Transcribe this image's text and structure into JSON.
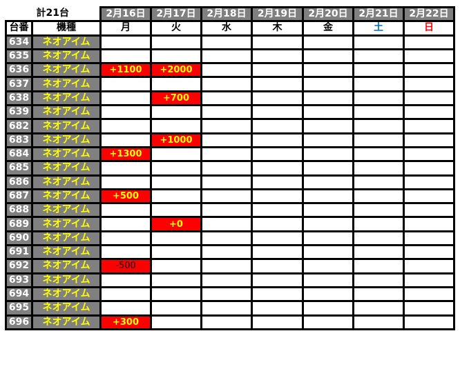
{
  "header": {
    "total_label": "計21台",
    "col_number": "台番",
    "col_model": "機種",
    "dates": [
      "2月16日",
      "2月17日",
      "2月18日",
      "2月19日",
      "2月20日",
      "2月21日",
      "2月22日"
    ],
    "weekdays": [
      "月",
      "火",
      "水",
      "木",
      "金",
      "土",
      "日"
    ]
  },
  "colors": {
    "header_bg": "#808080",
    "model_text": "#ffff00",
    "highlight_bg": "#ff0000",
    "saturday": "#0070c0",
    "sunday": "#ff0000"
  },
  "rows": [
    {
      "number": "634",
      "model": "ネオアイム",
      "values": [
        "",
        "",
        "",
        "",
        "",
        "",
        ""
      ]
    },
    {
      "number": "635",
      "model": "ネオアイム",
      "values": [
        "",
        "",
        "",
        "",
        "",
        "",
        ""
      ]
    },
    {
      "number": "636",
      "model": "ネオアイム",
      "values": [
        "+1100",
        "+2000",
        "",
        "",
        "",
        "",
        ""
      ]
    },
    {
      "number": "637",
      "model": "ネオアイム",
      "values": [
        "",
        "",
        "",
        "",
        "",
        "",
        ""
      ]
    },
    {
      "number": "638",
      "model": "ネオアイム",
      "values": [
        "",
        "+700",
        "",
        "",
        "",
        "",
        ""
      ]
    },
    {
      "number": "639",
      "model": "ネオアイム",
      "values": [
        "",
        "",
        "",
        "",
        "",
        "",
        ""
      ]
    },
    {
      "number": "682",
      "model": "ネオアイム",
      "values": [
        "",
        "",
        "",
        "",
        "",
        "",
        ""
      ]
    },
    {
      "number": "683",
      "model": "ネオアイム",
      "values": [
        "",
        "+1000",
        "",
        "",
        "",
        "",
        ""
      ]
    },
    {
      "number": "684",
      "model": "ネオアイム",
      "values": [
        "+1300",
        "",
        "",
        "",
        "",
        "",
        ""
      ]
    },
    {
      "number": "685",
      "model": "ネオアイム",
      "values": [
        "",
        "",
        "",
        "",
        "",
        "",
        ""
      ]
    },
    {
      "number": "686",
      "model": "ネオアイム",
      "values": [
        "",
        "",
        "",
        "",
        "",
        "",
        ""
      ]
    },
    {
      "number": "687",
      "model": "ネオアイム",
      "values": [
        "+500",
        "",
        "",
        "",
        "",
        "",
        ""
      ]
    },
    {
      "number": "688",
      "model": "ネオアイム",
      "values": [
        "",
        "",
        "",
        "",
        "",
        "",
        ""
      ]
    },
    {
      "number": "689",
      "model": "ネオアイム",
      "values": [
        "",
        "+0",
        "",
        "",
        "",
        "",
        ""
      ]
    },
    {
      "number": "690",
      "model": "ネオアイム",
      "values": [
        "",
        "",
        "",
        "",
        "",
        "",
        ""
      ]
    },
    {
      "number": "691",
      "model": "ネオアイム",
      "values": [
        "",
        "",
        "",
        "",
        "",
        "",
        ""
      ]
    },
    {
      "number": "692",
      "model": "ネオアイム",
      "values": [
        "-500",
        "",
        "",
        "",
        "",
        "",
        ""
      ]
    },
    {
      "number": "693",
      "model": "ネオアイム",
      "values": [
        "",
        "",
        "",
        "",
        "",
        "",
        ""
      ]
    },
    {
      "number": "694",
      "model": "ネオアイム",
      "values": [
        "",
        "",
        "",
        "",
        "",
        "",
        ""
      ]
    },
    {
      "number": "695",
      "model": "ネオアイム",
      "values": [
        "",
        "",
        "",
        "",
        "",
        "",
        ""
      ]
    },
    {
      "number": "696",
      "model": "ネオアイム",
      "values": [
        "+300",
        "",
        "",
        "",
        "",
        "",
        ""
      ]
    }
  ]
}
